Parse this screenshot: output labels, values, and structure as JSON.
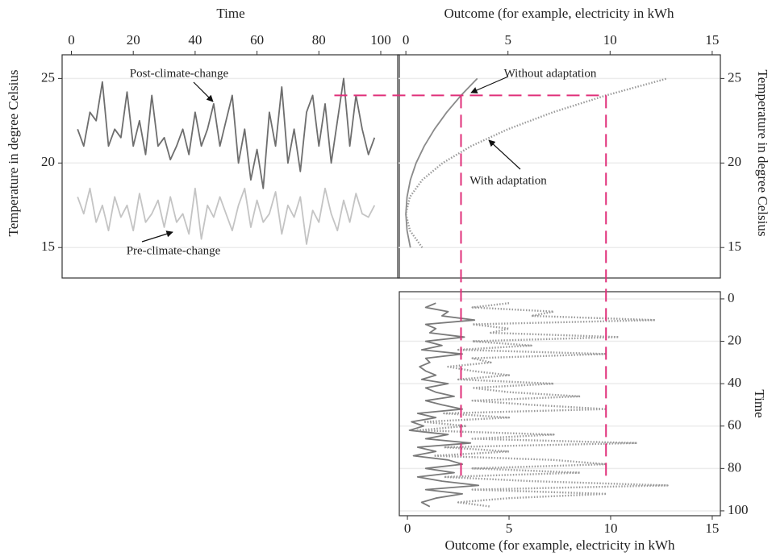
{
  "chart_data": [
    {
      "type": "line",
      "x_label": "Time",
      "y_label": "Temperature in degree Celsius",
      "x": [
        2,
        4,
        6,
        8,
        10,
        12,
        14,
        16,
        18,
        20,
        22,
        24,
        26,
        28,
        30,
        32,
        34,
        36,
        38,
        40,
        42,
        44,
        46,
        48,
        50,
        52,
        54,
        56,
        58,
        60,
        62,
        64,
        66,
        68,
        70,
        72,
        74,
        76,
        78,
        80,
        82,
        84,
        86,
        88,
        90,
        92,
        94,
        96,
        98
      ],
      "xlim": [
        -3,
        106
      ],
      "xticks": [
        0,
        20,
        40,
        60,
        80,
        100
      ],
      "ylim": [
        13.2,
        26.4
      ],
      "yticks": [
        15,
        20,
        25
      ],
      "grid": true,
      "series": [
        {
          "name": "Post-climate-change",
          "color": "#6e6e6e",
          "dash": false,
          "values": [
            22,
            21,
            23,
            22.5,
            24.8,
            21,
            22,
            21.5,
            24.2,
            21,
            22.5,
            20.5,
            24,
            21,
            21.5,
            20.2,
            21,
            22,
            20.5,
            23,
            21,
            22,
            23.5,
            21,
            22.5,
            24,
            20,
            22,
            19,
            20.8,
            18.5,
            23,
            21,
            24.5,
            20,
            22,
            19.5,
            23,
            24,
            21,
            23.5,
            20,
            22.5,
            25,
            21,
            24,
            22,
            20.5,
            21.5
          ]
        },
        {
          "name": "Pre-climate-change",
          "color": "#c4c4c4",
          "dash": false,
          "values": [
            18,
            17,
            18.5,
            16.5,
            17.5,
            16,
            18,
            16.8,
            17.5,
            16,
            18.2,
            16.5,
            17,
            17.8,
            16.2,
            18,
            16.5,
            17,
            15.8,
            18.5,
            15.5,
            17.5,
            16.8,
            18,
            17,
            16,
            17.5,
            18.5,
            16.2,
            17.8,
            16.5,
            17,
            18.3,
            15.8,
            17.5,
            16.8,
            18,
            15.2,
            17.2,
            16.5,
            18.5,
            17,
            16,
            17.8,
            16.5,
            18.2,
            17,
            16.8,
            17.5
          ]
        }
      ]
    },
    {
      "type": "line",
      "orientation": "horizontal",
      "x_label": "Outcome (for example, electricity in kWh",
      "y_label": "Temperature in degree Celsius",
      "y": [
        15,
        16,
        17,
        18,
        19,
        20,
        21,
        22,
        23,
        24,
        25
      ],
      "xlim": [
        -0.4,
        15.4
      ],
      "xticks": [
        0,
        5,
        10,
        15
      ],
      "ylim": [
        13.2,
        26.4
      ],
      "yticks": [
        15,
        20,
        25
      ],
      "grid": true,
      "series": [
        {
          "name": "Without adaptation",
          "color": "#8a8a8a",
          "dash": false,
          "values": [
            0.22,
            0.06,
            0,
            0.06,
            0.22,
            0.5,
            0.9,
            1.4,
            2.0,
            2.7,
            3.5
          ]
        },
        {
          "name": "With adaptation",
          "color": "#9a9a9a",
          "dash": true,
          "values": [
            0.8,
            0.2,
            0,
            0.2,
            0.8,
            1.8,
            3.2,
            5.0,
            7.2,
            9.8,
            12.8
          ]
        }
      ]
    },
    {
      "type": "line",
      "orientation": "horizontal",
      "y_inverted": true,
      "x_label": "Outcome (for example, electricity in kWh",
      "y_label": "Time",
      "y": [
        2,
        4,
        6,
        8,
        10,
        12,
        14,
        16,
        18,
        20,
        22,
        24,
        26,
        28,
        30,
        32,
        34,
        36,
        38,
        40,
        42,
        44,
        46,
        48,
        50,
        52,
        54,
        56,
        58,
        60,
        62,
        64,
        66,
        68,
        70,
        72,
        74,
        76,
        78,
        80,
        82,
        84,
        86,
        88,
        90,
        92,
        94,
        96,
        98
      ],
      "xlim": [
        -0.4,
        15.4
      ],
      "xticks": [
        0,
        5,
        10,
        15
      ],
      "ylim": [
        -3.4,
        102.3
      ],
      "yticks": [
        0,
        20,
        40,
        60,
        80,
        100
      ],
      "grid": true,
      "series": [
        {
          "color": "#7a7a7a",
          "dash": false,
          "values": [
            1.4,
            0.9,
            2.0,
            1.7,
            3.3,
            0.9,
            1.4,
            1.1,
            2.8,
            0.9,
            1.7,
            0.7,
            2.7,
            0.9,
            1.1,
            0.6,
            0.9,
            1.4,
            0.7,
            2.0,
            0.9,
            1.4,
            2.3,
            0.9,
            1.7,
            2.7,
            0.5,
            1.4,
            0.2,
            0.8,
            0.1,
            2.0,
            0.9,
            3.1,
            0.5,
            1.4,
            0.3,
            2.0,
            2.7,
            0.9,
            2.3,
            0.5,
            1.7,
            3.5,
            0.9,
            2.7,
            1.4,
            0.7,
            1.1
          ]
        },
        {
          "color": "#9a9a9a",
          "dash": true,
          "values": [
            5.0,
            3.2,
            7.2,
            6.1,
            12.2,
            3.2,
            5.0,
            4.1,
            10.4,
            3.2,
            6.1,
            2.5,
            9.8,
            3.2,
            4.1,
            2.0,
            3.2,
            5.0,
            2.5,
            7.2,
            3.2,
            5.0,
            8.5,
            3.2,
            6.1,
            9.8,
            1.8,
            5.0,
            0.8,
            2.9,
            0.5,
            7.2,
            3.2,
            11.3,
            1.8,
            5.0,
            1.3,
            7.2,
            9.8,
            3.2,
            8.5,
            1.8,
            6.1,
            12.8,
            3.2,
            9.8,
            5.0,
            2.5,
            4.1
          ]
        }
      ]
    }
  ],
  "guide": {
    "color": "#e0307a",
    "temperature": 24,
    "time": 85,
    "outcomes": [
      2.7,
      9.8
    ]
  }
}
